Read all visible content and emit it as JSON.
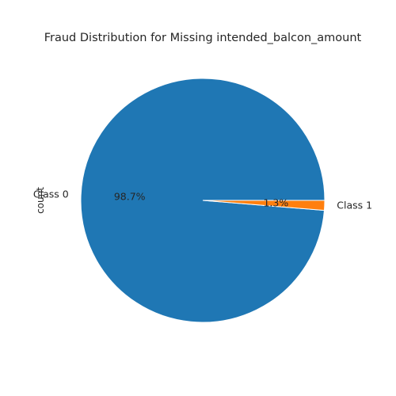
{
  "chart_data": {
    "type": "pie",
    "title": "Fraud Distribution for Missing intended_balcon_amount",
    "ylabel": "count",
    "labels": [
      "Class 0",
      "Class 1"
    ],
    "values": [
      98.7,
      1.3
    ],
    "autopct": [
      "98.7%",
      "1.3%"
    ],
    "colors": [
      "#1f77b4",
      "#ff7f0e"
    ],
    "start_angle_deg": 0,
    "direction": "counterclockwise",
    "wedge_edge_color": "#ffffff"
  }
}
